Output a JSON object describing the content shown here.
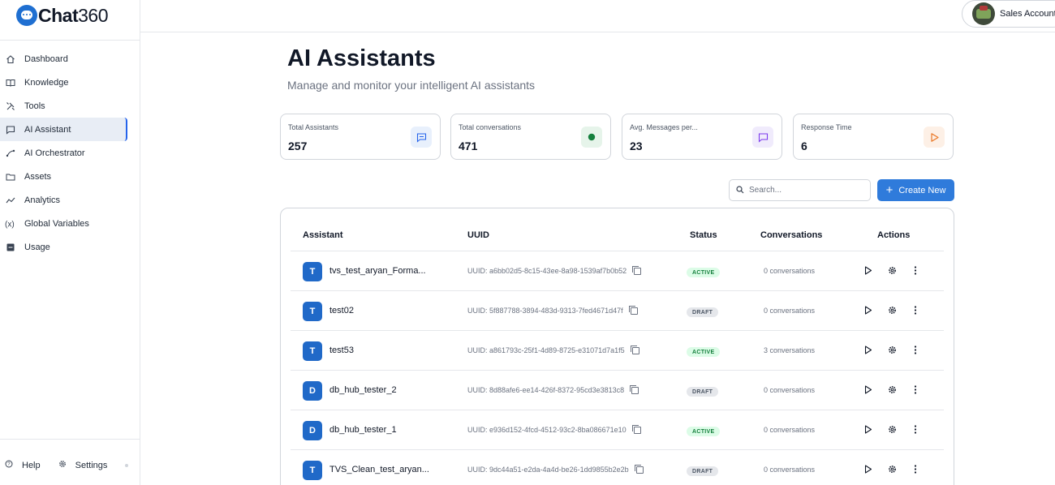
{
  "app": {
    "logo_prefix": "Chat",
    "logo_suffix": "360"
  },
  "sidebar": {
    "items": [
      {
        "label": "Dashboard",
        "icon": "home-icon"
      },
      {
        "label": "Knowledge",
        "icon": "book-icon"
      },
      {
        "label": "Tools",
        "icon": "tools-icon"
      },
      {
        "label": "AI Assistant",
        "icon": "chat-icon",
        "active": true
      },
      {
        "label": "AI Orchestrator",
        "icon": "flow-icon"
      },
      {
        "label": "Assets",
        "icon": "folder-icon"
      },
      {
        "label": "Analytics",
        "icon": "trend-icon"
      },
      {
        "label": "Global Variables",
        "icon": "variable-icon"
      },
      {
        "label": "Usage",
        "icon": "usage-icon"
      }
    ],
    "help_label": "Help",
    "settings_label": "Settings"
  },
  "header": {
    "account_label": "Sales Account"
  },
  "main": {
    "title": "AI Assistants",
    "subtitle": "Manage and monitor your intelligent AI assistants",
    "stats": [
      {
        "label": "Total Assistants",
        "value": "257",
        "icon": "chat-bubble-icon",
        "color": "#2563eb",
        "bg": "#e8f0fc"
      },
      {
        "label": "Total conversations",
        "value": "471",
        "icon": "green-dot-icon",
        "color": "#15803d",
        "bg": "#e6f4ea"
      },
      {
        "label": "Avg. Messages per...",
        "value": "23",
        "icon": "message-icon",
        "color": "#7c3aed",
        "bg": "#f0ebfc"
      },
      {
        "label": "Response Time",
        "value": "6",
        "icon": "play-icon",
        "color": "#ea7a2a",
        "bg": "#fdf0e6"
      }
    ],
    "search_placeholder": "Search...",
    "create_label": "Create New",
    "table": {
      "headers": {
        "assistant": "Assistant",
        "uuid": "UUID",
        "status": "Status",
        "conversations": "Conversations",
        "actions": "Actions"
      },
      "rows": [
        {
          "initial": "T",
          "name": "tvs_test_aryan_Forma...",
          "uuid": "UUID: a6bb02d5-8c15-43ee-8a98-1539af7b0b52",
          "status": "ACTIVE",
          "conversations": "0 conversations"
        },
        {
          "initial": "T",
          "name": "test02",
          "uuid": "UUID: 5f887788-3894-483d-9313-7fed4671d47f",
          "status": "DRAFT",
          "conversations": "0 conversations"
        },
        {
          "initial": "T",
          "name": "test53",
          "uuid": "UUID: a861793c-25f1-4d89-8725-e31071d7a1f5",
          "status": "ACTIVE",
          "conversations": "3 conversations"
        },
        {
          "initial": "D",
          "name": "db_hub_tester_2",
          "uuid": "UUID: 8d88afe6-ee14-426f-8372-95cd3e3813c8",
          "status": "DRAFT",
          "conversations": "0 conversations"
        },
        {
          "initial": "D",
          "name": "db_hub_tester_1",
          "uuid": "UUID: e936d152-4fcd-4512-93c2-8ba086671e10",
          "status": "ACTIVE",
          "conversations": "0 conversations"
        },
        {
          "initial": "T",
          "name": "TVS_Clean_test_aryan...",
          "uuid": "UUID: 9dc44a51-e2da-4a4d-be26-1dd9855b2e2b",
          "status": "DRAFT",
          "conversations": "0 conversations"
        }
      ]
    }
  }
}
